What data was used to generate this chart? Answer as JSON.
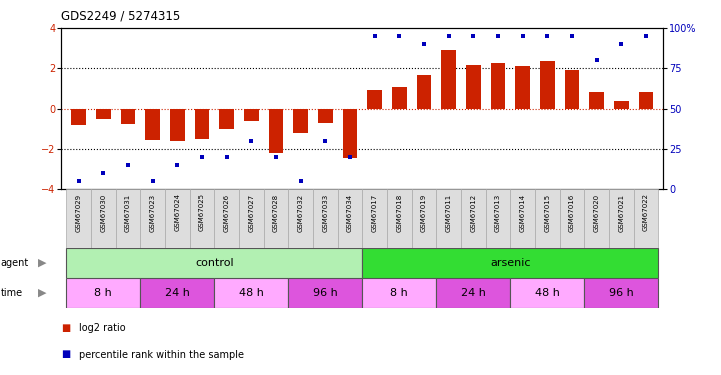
{
  "title": "GDS2249 / 5274315",
  "samples": [
    "GSM67029",
    "GSM67030",
    "GSM67031",
    "GSM67023",
    "GSM67024",
    "GSM67025",
    "GSM67026",
    "GSM67027",
    "GSM67028",
    "GSM67032",
    "GSM67033",
    "GSM67034",
    "GSM67017",
    "GSM67018",
    "GSM67019",
    "GSM67011",
    "GSM67012",
    "GSM67013",
    "GSM67014",
    "GSM67015",
    "GSM67016",
    "GSM67020",
    "GSM67021",
    "GSM67022"
  ],
  "log2_ratio": [
    -0.8,
    -0.5,
    -0.75,
    -1.55,
    -1.6,
    -1.5,
    -1.0,
    -0.6,
    -2.2,
    -1.2,
    -0.7,
    -2.45,
    0.95,
    1.1,
    1.65,
    2.9,
    2.15,
    2.25,
    2.1,
    2.35,
    1.9,
    0.85,
    0.4,
    0.85
  ],
  "percentile": [
    5,
    10,
    15,
    5,
    15,
    20,
    20,
    30,
    20,
    5,
    30,
    20,
    95,
    95,
    90,
    95,
    95,
    95,
    95,
    95,
    95,
    80,
    90,
    95
  ],
  "agent_groups": [
    {
      "label": "control",
      "start": 0,
      "end": 11,
      "color": "#b2f0b2"
    },
    {
      "label": "arsenic",
      "start": 12,
      "end": 23,
      "color": "#33dd33"
    }
  ],
  "time_groups": [
    {
      "label": "8 h",
      "start": 0,
      "end": 2,
      "color": "#ffaaff"
    },
    {
      "label": "24 h",
      "start": 3,
      "end": 5,
      "color": "#dd55dd"
    },
    {
      "label": "48 h",
      "start": 6,
      "end": 8,
      "color": "#ffaaff"
    },
    {
      "label": "96 h",
      "start": 9,
      "end": 11,
      "color": "#dd55dd"
    },
    {
      "label": "8 h",
      "start": 12,
      "end": 14,
      "color": "#ffaaff"
    },
    {
      "label": "24 h",
      "start": 15,
      "end": 17,
      "color": "#dd55dd"
    },
    {
      "label": "48 h",
      "start": 18,
      "end": 20,
      "color": "#ffaaff"
    },
    {
      "label": "96 h",
      "start": 21,
      "end": 23,
      "color": "#dd55dd"
    }
  ],
  "bar_color": "#cc2200",
  "dot_color": "#0000bb",
  "ylim_left": [
    -4,
    4
  ],
  "ylim_right": [
    0,
    100
  ],
  "yticks_left": [
    -4,
    -2,
    0,
    2,
    4
  ],
  "yticks_right": [
    0,
    25,
    50,
    75,
    100
  ],
  "yticklabels_right": [
    "0",
    "25",
    "50",
    "75",
    "100%"
  ],
  "hlines": [
    -2,
    0,
    2
  ],
  "legend": [
    {
      "color": "#cc2200",
      "label": "log2 ratio"
    },
    {
      "color": "#0000bb",
      "label": "percentile rank within the sample"
    }
  ],
  "label_bg": "#dddddd",
  "label_edge": "#aaaaaa"
}
